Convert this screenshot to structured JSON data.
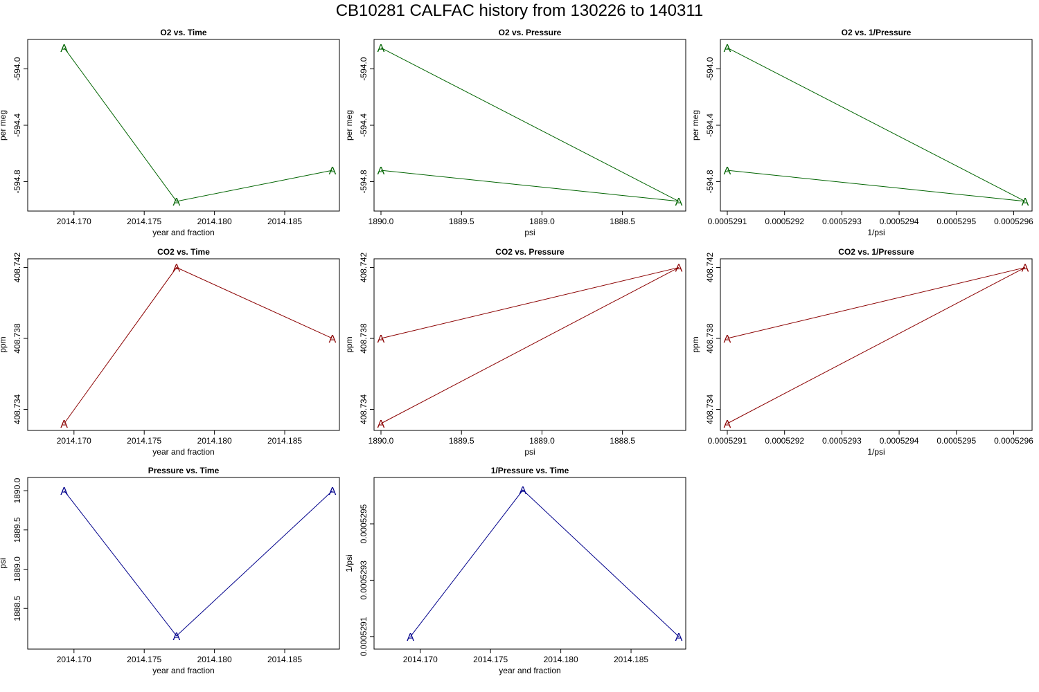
{
  "title": "CB10281   CALFAC history from  130226  to  140311",
  "colors": {
    "o2": "#006400",
    "co2": "#8b0000",
    "pressure": "#00008b"
  },
  "chart_data": [
    {
      "type": "line",
      "title": "O2 vs. Time",
      "xlabel": "year and fraction",
      "ylabel": "per meg",
      "color_key": "o2",
      "marker": "A",
      "x": [
        2014.1693,
        2014.1773,
        2014.1884
      ],
      "y": [
        -593.85,
        -594.94,
        -594.72
      ],
      "xlim": [
        2014.1672,
        2014.1884
      ],
      "ylim": [
        -594.96,
        -593.84
      ],
      "x_ticks": [
        2014.17,
        2014.175,
        2014.18,
        2014.185
      ],
      "x_tick_labels": [
        "2014.170",
        "2014.175",
        "2014.180",
        "2014.185"
      ],
      "y_ticks": [
        -594.0,
        -594.4,
        -594.8
      ],
      "y_tick_labels": [
        "-594.0",
        "-594.4",
        "-594.8"
      ]
    },
    {
      "type": "line",
      "title": "O2 vs. Pressure",
      "xlabel": "psi",
      "ylabel": "per meg",
      "color_key": "o2",
      "marker": "A",
      "x": [
        1890.0,
        1888.15,
        1890.0
      ],
      "y": [
        -593.85,
        -594.94,
        -594.72
      ],
      "xlim": [
        1890.0,
        1888.15
      ],
      "ylim": [
        -594.96,
        -593.84
      ],
      "x_ticks": [
        1890.0,
        1889.5,
        1889.0,
        1888.5
      ],
      "x_tick_labels": [
        "1890.0",
        "1889.5",
        "1889.0",
        "1888.5"
      ],
      "y_ticks": [
        -594.0,
        -594.4,
        -594.8
      ],
      "y_tick_labels": [
        "-594.0",
        "-594.4",
        "-594.8"
      ]
    },
    {
      "type": "line",
      "title": "O2 vs. 1/Pressure",
      "xlabel": "1/psi",
      "ylabel": "per meg",
      "color_key": "o2",
      "marker": "A",
      "x": [
        0.0005291,
        0.00052962,
        0.0005291
      ],
      "y": [
        -593.85,
        -594.94,
        -594.72
      ],
      "xlim": [
        0.0005291,
        0.00052962
      ],
      "ylim": [
        -594.96,
        -593.84
      ],
      "x_ticks": [
        0.0005291,
        0.0005292,
        0.0005293,
        0.0005294,
        0.0005295,
        0.0005296
      ],
      "x_tick_labels": [
        "0.0005291",
        "0.0005292",
        "0.0005293",
        "0.0005294",
        "0.0005295",
        "0.0005296"
      ],
      "y_ticks": [
        -594.0,
        -594.4,
        -594.8
      ],
      "y_tick_labels": [
        "-594.0",
        "-594.4",
        "-594.8"
      ]
    },
    {
      "type": "line",
      "title": "CO2 vs. Time",
      "xlabel": "year and fraction",
      "ylabel": "ppm",
      "color_key": "co2",
      "marker": "A",
      "x": [
        2014.1693,
        2014.1773,
        2014.1884
      ],
      "y": [
        408.7332,
        408.742,
        408.738
      ],
      "xlim": [
        2014.1672,
        2014.1884
      ],
      "ylim": [
        408.7332,
        408.7421
      ],
      "x_ticks": [
        2014.17,
        2014.175,
        2014.18,
        2014.185
      ],
      "x_tick_labels": [
        "2014.170",
        "2014.175",
        "2014.180",
        "2014.185"
      ],
      "y_ticks": [
        408.734,
        408.738,
        408.742
      ],
      "y_tick_labels": [
        "408.734",
        "408.738",
        "408.742"
      ]
    },
    {
      "type": "line",
      "title": "CO2 vs. Pressure",
      "xlabel": "psi",
      "ylabel": "ppm",
      "color_key": "co2",
      "marker": "A",
      "x": [
        1890.0,
        1888.15,
        1890.0
      ],
      "y": [
        408.7332,
        408.742,
        408.738
      ],
      "xlim": [
        1890.0,
        1888.15
      ],
      "ylim": [
        408.7332,
        408.7421
      ],
      "x_ticks": [
        1890.0,
        1889.5,
        1889.0,
        1888.5
      ],
      "x_tick_labels": [
        "1890.0",
        "1889.5",
        "1889.0",
        "1888.5"
      ],
      "y_ticks": [
        408.734,
        408.738,
        408.742
      ],
      "y_tick_labels": [
        "408.734",
        "408.738",
        "408.742"
      ]
    },
    {
      "type": "line",
      "title": "CO2 vs. 1/Pressure",
      "xlabel": "1/psi",
      "ylabel": "ppm",
      "color_key": "co2",
      "marker": "A",
      "x": [
        0.0005291,
        0.00052962,
        0.0005291
      ],
      "y": [
        408.7332,
        408.742,
        408.738
      ],
      "xlim": [
        0.0005291,
        0.00052962
      ],
      "ylim": [
        408.7332,
        408.7421
      ],
      "x_ticks": [
        0.0005291,
        0.0005292,
        0.0005293,
        0.0005294,
        0.0005295,
        0.0005296
      ],
      "x_tick_labels": [
        "0.0005291",
        "0.0005292",
        "0.0005293",
        "0.0005294",
        "0.0005295",
        "0.0005296"
      ],
      "y_ticks": [
        408.734,
        408.738,
        408.742
      ],
      "y_tick_labels": [
        "408.734",
        "408.738",
        "408.742"
      ]
    },
    {
      "type": "line",
      "title": "Pressure vs. Time",
      "xlabel": "year and fraction",
      "ylabel": "psi",
      "color_key": "pressure",
      "marker": "A",
      "x": [
        2014.1693,
        2014.1773,
        2014.1884
      ],
      "y": [
        1890.0,
        1888.15,
        1890.0
      ],
      "xlim": [
        2014.1672,
        2014.1884
      ],
      "ylim": [
        1888.07,
        1890.08
      ],
      "x_ticks": [
        2014.17,
        2014.175,
        2014.18,
        2014.185
      ],
      "x_tick_labels": [
        "2014.170",
        "2014.175",
        "2014.180",
        "2014.185"
      ],
      "y_ticks": [
        1888.5,
        1889.0,
        1889.5,
        1890.0
      ],
      "y_tick_labels": [
        "1888.5",
        "1889.0",
        "1889.5",
        "1890.0"
      ]
    },
    {
      "type": "line",
      "title": "1/Pressure vs. Time",
      "xlabel": "year and fraction",
      "ylabel": "1/psi",
      "color_key": "pressure",
      "marker": "A",
      "x": [
        2014.1693,
        2014.1773,
        2014.1884
      ],
      "y": [
        0.0005291,
        0.00052962,
        0.0005291
      ],
      "xlim": [
        2014.1672,
        2014.1884
      ],
      "ylim": [
        0.00052908,
        0.00052964
      ],
      "x_ticks": [
        2014.17,
        2014.175,
        2014.18,
        2014.185
      ],
      "x_tick_labels": [
        "2014.170",
        "2014.175",
        "2014.180",
        "2014.185"
      ],
      "y_ticks": [
        0.0005291,
        0.0005293,
        0.0005295
      ],
      "y_tick_labels": [
        "0.0005291",
        "0.0005293",
        "0.0005295"
      ]
    }
  ]
}
